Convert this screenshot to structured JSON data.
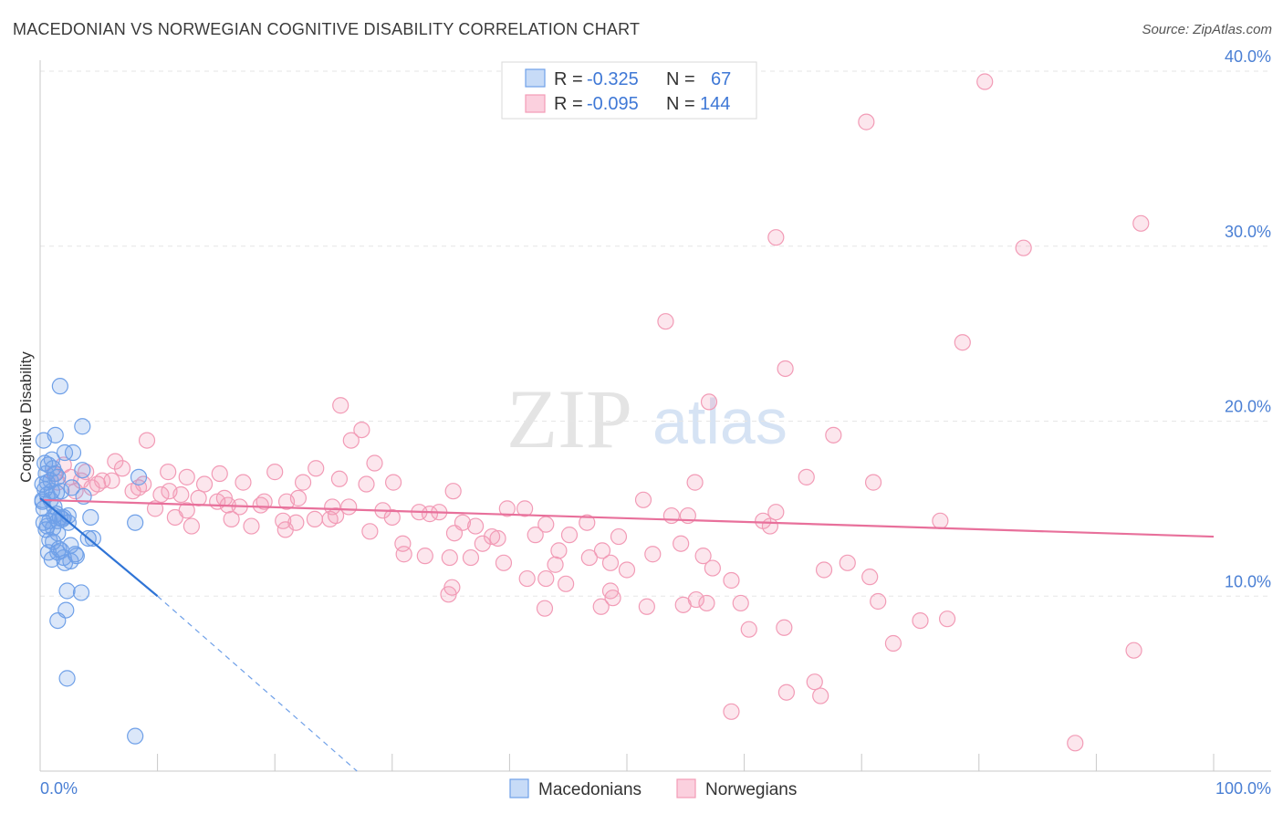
{
  "title": "MACEDONIAN VS NORWEGIAN COGNITIVE DISABILITY CORRELATION CHART",
  "source": "Source: ZipAtlas.com",
  "watermark": {
    "zip": "ZIP",
    "atlas": "atlas"
  },
  "legend": {
    "rows": [
      {
        "r_label": "R =",
        "r_value": "-0.325",
        "n_label": "N =",
        "n_value": "67",
        "color": "#6fa0e8"
      },
      {
        "r_label": "R =",
        "r_value": "-0.095",
        "n_label": "N =",
        "n_value": "144",
        "color": "#f29bb6"
      }
    ]
  },
  "bottom_legend": [
    "Macedonians",
    "Norwegians"
  ],
  "chart_data": {
    "type": "scatter",
    "xlabel": "",
    "ylabel": "Cognitive Disability",
    "xlim": [
      0,
      100
    ],
    "ylim": [
      0,
      40
    ],
    "x_tick_labels": [
      "0.0%",
      "100.0%"
    ],
    "y_ticks": [
      10,
      20,
      30,
      40
    ],
    "y_tick_labels": [
      "10.0%",
      "20.0%",
      "30.0%",
      "40.0%"
    ],
    "grid": true,
    "legend_placement": "top-center",
    "series": [
      {
        "name": "Macedonians",
        "color": "#6fa0e8",
        "trend": {
          "x": [
            0.0,
            10.0
          ],
          "y": [
            15.6,
            10.0
          ],
          "dashed_to": [
            27.0,
            0.0
          ]
        },
        "points": [
          [
            1.7,
            22.0
          ],
          [
            3.6,
            19.7
          ],
          [
            1.3,
            19.2
          ],
          [
            0.3,
            18.9
          ],
          [
            2.8,
            18.2
          ],
          [
            2.1,
            18.2
          ],
          [
            1.0,
            17.8
          ],
          [
            0.7,
            17.5
          ],
          [
            1.1,
            17.3
          ],
          [
            3.6,
            17.2
          ],
          [
            0.5,
            17.0
          ],
          [
            1.5,
            16.8
          ],
          [
            8.4,
            16.8
          ],
          [
            0.2,
            16.4
          ],
          [
            0.4,
            16.1
          ],
          [
            1.0,
            16.0
          ],
          [
            0.6,
            15.8
          ],
          [
            1.8,
            16.0
          ],
          [
            3.7,
            15.7
          ],
          [
            0.2,
            15.5
          ],
          [
            0.9,
            15.5
          ],
          [
            0.3,
            15.0
          ],
          [
            1.4,
            14.7
          ],
          [
            1.7,
            14.5
          ],
          [
            2.0,
            14.5
          ],
          [
            0.8,
            14.3
          ],
          [
            0.3,
            14.2
          ],
          [
            4.3,
            14.5
          ],
          [
            1.5,
            14.3
          ],
          [
            8.1,
            14.2
          ],
          [
            0.6,
            14.0
          ],
          [
            1.1,
            13.9
          ],
          [
            1.5,
            13.6
          ],
          [
            4.1,
            13.3
          ],
          [
            1.1,
            13.1
          ],
          [
            2.6,
            12.9
          ],
          [
            0.7,
            12.5
          ],
          [
            1.5,
            12.5
          ],
          [
            1.8,
            12.6
          ],
          [
            3.1,
            12.3
          ],
          [
            1.0,
            12.1
          ],
          [
            2.6,
            12.0
          ],
          [
            2.1,
            11.9
          ],
          [
            2.3,
            10.3
          ],
          [
            3.5,
            10.2
          ],
          [
            2.2,
            9.2
          ],
          [
            1.5,
            8.6
          ],
          [
            2.3,
            5.3
          ],
          [
            8.1,
            2.0
          ],
          [
            0.5,
            13.8
          ],
          [
            1.2,
            14.6
          ],
          [
            2.4,
            14.6
          ],
          [
            4.5,
            13.3
          ],
          [
            3.0,
            12.4
          ],
          [
            0.9,
            16.6
          ],
          [
            1.2,
            15.1
          ],
          [
            1.9,
            14.4
          ],
          [
            2.7,
            16.2
          ],
          [
            0.4,
            17.6
          ],
          [
            0.6,
            16.5
          ],
          [
            1.4,
            15.9
          ],
          [
            0.8,
            13.2
          ],
          [
            2.0,
            12.2
          ],
          [
            1.3,
            17.0
          ],
          [
            0.2,
            15.4
          ],
          [
            2.4,
            14.2
          ],
          [
            1.6,
            12.7
          ]
        ]
      },
      {
        "name": "Norwegians",
        "color": "#f29bb6",
        "trend": {
          "x": [
            0.0,
            100.0
          ],
          "y": [
            15.5,
            13.4
          ]
        },
        "points": [
          [
            80.5,
            39.4
          ],
          [
            70.4,
            37.1
          ],
          [
            93.8,
            31.3
          ],
          [
            83.8,
            29.9
          ],
          [
            62.7,
            30.5
          ],
          [
            53.3,
            25.7
          ],
          [
            78.6,
            24.5
          ],
          [
            63.5,
            23.0
          ],
          [
            57.0,
            21.1
          ],
          [
            25.6,
            20.9
          ],
          [
            27.4,
            19.5
          ],
          [
            26.5,
            18.9
          ],
          [
            9.1,
            18.9
          ],
          [
            67.6,
            19.2
          ],
          [
            6.4,
            17.7
          ],
          [
            28.5,
            17.6
          ],
          [
            7.0,
            17.3
          ],
          [
            23.5,
            17.3
          ],
          [
            20.0,
            17.1
          ],
          [
            10.9,
            17.1
          ],
          [
            15.3,
            17.0
          ],
          [
            3.9,
            17.1
          ],
          [
            5.3,
            16.6
          ],
          [
            12.5,
            16.8
          ],
          [
            22.4,
            16.5
          ],
          [
            25.5,
            16.7
          ],
          [
            30.1,
            16.5
          ],
          [
            17.3,
            16.5
          ],
          [
            65.3,
            16.8
          ],
          [
            55.8,
            16.5
          ],
          [
            71.0,
            16.5
          ],
          [
            14.0,
            16.4
          ],
          [
            7.9,
            16.0
          ],
          [
            8.4,
            16.2
          ],
          [
            11.0,
            16.0
          ],
          [
            12.0,
            15.8
          ],
          [
            27.8,
            16.4
          ],
          [
            35.2,
            16.0
          ],
          [
            4.4,
            16.2
          ],
          [
            3.0,
            16.0
          ],
          [
            1.5,
            16.5
          ],
          [
            15.7,
            15.6
          ],
          [
            19.1,
            15.4
          ],
          [
            21.0,
            15.4
          ],
          [
            15.1,
            15.4
          ],
          [
            16.0,
            15.2
          ],
          [
            18.8,
            15.2
          ],
          [
            9.8,
            15.0
          ],
          [
            12.5,
            14.9
          ],
          [
            29.2,
            14.9
          ],
          [
            32.3,
            14.8
          ],
          [
            39.8,
            15.0
          ],
          [
            41.3,
            15.0
          ],
          [
            51.4,
            15.5
          ],
          [
            53.8,
            14.6
          ],
          [
            62.7,
            14.8
          ],
          [
            11.5,
            14.5
          ],
          [
            16.3,
            14.4
          ],
          [
            20.7,
            14.3
          ],
          [
            21.8,
            14.2
          ],
          [
            23.4,
            14.4
          ],
          [
            25.2,
            14.6
          ],
          [
            24.7,
            14.4
          ],
          [
            33.2,
            14.7
          ],
          [
            36.0,
            14.2
          ],
          [
            43.1,
            14.1
          ],
          [
            46.6,
            14.2
          ],
          [
            55.2,
            14.6
          ],
          [
            76.7,
            14.3
          ],
          [
            62.2,
            14.0
          ],
          [
            12.9,
            14.0
          ],
          [
            18.0,
            14.0
          ],
          [
            20.9,
            13.8
          ],
          [
            28.1,
            13.7
          ],
          [
            35.3,
            13.6
          ],
          [
            39.0,
            13.3
          ],
          [
            42.2,
            13.5
          ],
          [
            37.7,
            13.0
          ],
          [
            49.3,
            13.4
          ],
          [
            38.5,
            13.4
          ],
          [
            30.9,
            13.0
          ],
          [
            47.9,
            12.6
          ],
          [
            54.6,
            13.0
          ],
          [
            44.2,
            12.6
          ],
          [
            31.0,
            12.4
          ],
          [
            32.8,
            12.3
          ],
          [
            34.9,
            12.2
          ],
          [
            36.7,
            12.2
          ],
          [
            46.8,
            12.2
          ],
          [
            52.2,
            12.4
          ],
          [
            56.5,
            12.3
          ],
          [
            48.6,
            11.9
          ],
          [
            43.9,
            11.8
          ],
          [
            39.5,
            11.9
          ],
          [
            50.0,
            11.5
          ],
          [
            57.3,
            11.6
          ],
          [
            66.8,
            11.5
          ],
          [
            68.8,
            11.9
          ],
          [
            70.7,
            11.1
          ],
          [
            41.5,
            11.0
          ],
          [
            43.1,
            11.0
          ],
          [
            58.9,
            10.9
          ],
          [
            44.8,
            10.7
          ],
          [
            35.1,
            10.5
          ],
          [
            48.6,
            10.3
          ],
          [
            34.8,
            10.1
          ],
          [
            48.8,
            9.9
          ],
          [
            55.9,
            9.8
          ],
          [
            56.8,
            9.6
          ],
          [
            59.7,
            9.6
          ],
          [
            54.8,
            9.5
          ],
          [
            51.7,
            9.4
          ],
          [
            43.0,
            9.3
          ],
          [
            47.8,
            9.4
          ],
          [
            71.4,
            9.7
          ],
          [
            77.3,
            8.7
          ],
          [
            75.0,
            8.6
          ],
          [
            63.4,
            8.2
          ],
          [
            60.4,
            8.1
          ],
          [
            72.7,
            7.3
          ],
          [
            93.2,
            6.9
          ],
          [
            66.0,
            5.1
          ],
          [
            66.5,
            4.3
          ],
          [
            63.6,
            4.5
          ],
          [
            58.9,
            3.4
          ],
          [
            88.2,
            1.6
          ],
          [
            2.0,
            17.5
          ],
          [
            4.9,
            16.4
          ],
          [
            6.1,
            16.6
          ],
          [
            3.5,
            16.6
          ],
          [
            1.2,
            17.0
          ],
          [
            2.6,
            16.8
          ],
          [
            8.8,
            16.4
          ],
          [
            10.3,
            15.8
          ],
          [
            13.5,
            15.6
          ],
          [
            17.0,
            15.1
          ],
          [
            22.0,
            15.6
          ],
          [
            24.9,
            15.1
          ],
          [
            26.3,
            15.1
          ],
          [
            30.0,
            14.5
          ],
          [
            34.0,
            14.8
          ],
          [
            37.1,
            14.0
          ],
          [
            45.1,
            13.5
          ],
          [
            61.6,
            14.3
          ]
        ]
      }
    ]
  }
}
